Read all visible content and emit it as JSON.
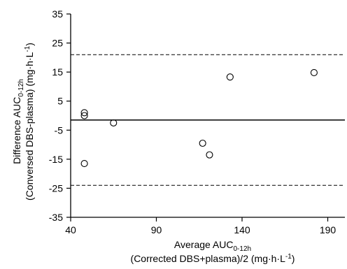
{
  "chart_data": {
    "type": "scatter",
    "title": "",
    "x": [
      48,
      48,
      48,
      65,
      117,
      121,
      133,
      182
    ],
    "y": [
      1,
      0,
      -16.5,
      -2.5,
      -9.5,
      -13.5,
      13.3,
      14.8
    ],
    "xlim": [
      40,
      200
    ],
    "ylim": [
      -35,
      35
    ],
    "xticks": [
      40,
      90,
      140,
      190
    ],
    "yticks": [
      -35,
      -25,
      -15,
      -5,
      5,
      15,
      25,
      35
    ],
    "xtick_labels": [
      "40",
      "90",
      "140",
      "190"
    ],
    "ytick_labels": [
      "-35",
      "-25",
      "-15",
      "-5",
      "5",
      "15",
      "25",
      "35"
    ],
    "mean_line": -1.5,
    "loa_upper": 21,
    "loa_lower": -24,
    "xlabel": {
      "prefix": "Average AUC",
      "subscript": "0-12h",
      "line2": "(Corrected DBS+plasma)/2 (mg·h·L",
      "sup": "-1",
      "close": ")"
    },
    "ylabel": {
      "prefix": "Difference AUC",
      "subscript": "0-12h",
      "line2": "(Conversed DBS-plasma) (mg·h·L",
      "sup": "-1",
      "close": ")"
    },
    "grid": false,
    "legend": "none",
    "marker": "open-circle",
    "colors": {
      "line": "#000000",
      "marker_stroke": "#000000",
      "background": "#ffffff"
    }
  }
}
